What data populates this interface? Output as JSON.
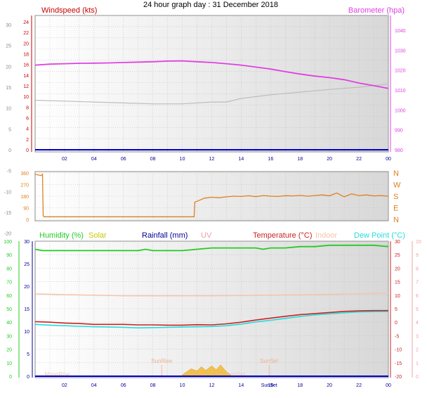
{
  "title": "24 hour graph day : 31 December 2018",
  "colors": {
    "windspeed": "#cc0000",
    "barometer": "#e040e0",
    "wind_line": "#bdbdbd",
    "wind_dir": "#e08020",
    "humidity": "#22cc22",
    "solar": "#c8c800",
    "rainfall": "#000099",
    "uv": "#f0a0a0",
    "temperature": "#cc2222",
    "indoor": "#f5c4a8",
    "dewpoint": "#22dddd",
    "zero_line": "#0000cc",
    "solar_fill": "#f0c050"
  },
  "chart_data": [
    {
      "type": "line",
      "name": "wind-barometer",
      "left_label": "Windspeed (kts)",
      "right_label": "Barometer (hpa)",
      "x_ticks": [
        "02",
        "04",
        "06",
        "08",
        "10",
        "12",
        "14",
        "16",
        "18",
        "20",
        "22",
        "00"
      ],
      "outer_left_ticks": [
        "-20",
        "-15",
        "-10",
        "-5",
        "0",
        "5",
        "10",
        "15",
        "20",
        "25",
        "30"
      ],
      "left_ticks": [
        "0",
        "2",
        "4",
        "6",
        "8",
        "10",
        "12",
        "14",
        "16",
        "18",
        "20",
        "22",
        "24"
      ],
      "right_ticks": [
        "980",
        "990",
        "1000",
        "1010",
        "1020",
        "1030",
        "1040"
      ],
      "left_range": [
        0,
        25
      ],
      "outer_left_range": [
        -20,
        30
      ],
      "right_range": [
        980,
        1040
      ],
      "series": [
        {
          "name": "Barometer",
          "x": [
            0,
            1,
            2,
            3,
            4,
            5,
            6,
            7,
            8,
            9,
            10,
            11,
            12,
            13,
            14,
            15,
            16,
            17,
            18,
            19,
            20,
            21,
            22,
            23,
            24
          ],
          "values": [
            1022.5,
            1023,
            1023.2,
            1023.4,
            1023.5,
            1023.6,
            1023.8,
            1024,
            1024.2,
            1024.5,
            1024.6,
            1024.2,
            1023.8,
            1023.2,
            1022.5,
            1021.5,
            1020.5,
            1019.2,
            1018,
            1017,
            1016.2,
            1015.2,
            1013.5,
            1012.2,
            1010.8
          ]
        },
        {
          "name": "Windspeed",
          "x": [
            0,
            2,
            4,
            6,
            8,
            10,
            12,
            13,
            14,
            16,
            18,
            20,
            22,
            24
          ],
          "values": [
            11,
            10.8,
            10.6,
            10.4,
            10.2,
            10.2,
            10.6,
            10.6,
            11.4,
            12.2,
            12.8,
            13.4,
            13.9,
            14.6
          ]
        }
      ]
    },
    {
      "type": "line",
      "name": "wind-direction",
      "left_ticks": [
        "0",
        "90",
        "180",
        "270",
        "360"
      ],
      "compass": [
        "N",
        "E",
        "S",
        "W",
        "N"
      ],
      "y_range": [
        0,
        360
      ],
      "series": [
        {
          "name": "Wind direction",
          "x": [
            0,
            0.2,
            0.4,
            0.5,
            0.55,
            0.6,
            1,
            3,
            5,
            7,
            9,
            10.8,
            10.85,
            11,
            11.5,
            12,
            12.5,
            13,
            13.5,
            14,
            14.5,
            15,
            15.5,
            16,
            16.5,
            17,
            17.5,
            18,
            18.5,
            19,
            19.5,
            20,
            20.5,
            21,
            21.5,
            22,
            22.5,
            23,
            23.5,
            24
          ],
          "values": [
            350,
            345,
            340,
            350,
            30,
            20,
            20,
            20,
            20,
            20,
            20,
            20,
            135,
            140,
            165,
            172,
            168,
            175,
            180,
            178,
            183,
            176,
            185,
            180,
            178,
            184,
            182,
            186,
            180,
            185,
            190,
            183,
            205,
            175,
            198,
            185,
            190,
            182,
            185,
            180
          ]
        }
      ]
    },
    {
      "type": "line",
      "name": "temperature-humidity",
      "legend": [
        "Humidity (%)",
        "Solar",
        "Rainfall (mm)",
        "UV",
        "Temperature (°C)",
        "Indoor",
        "Dew Point (°C)"
      ],
      "x_ticks": [
        "02",
        "04",
        "06",
        "08",
        "10",
        "12",
        "14",
        "SunSet",
        "16",
        "18",
        "20",
        "22",
        "00"
      ],
      "humidity_ticks": [
        "0",
        "10",
        "20",
        "30",
        "40",
        "50",
        "60",
        "70",
        "80",
        "90",
        "100"
      ],
      "rain_ticks": [
        "0",
        "5",
        "10",
        "15",
        "20",
        "25",
        "30"
      ],
      "temp_ticks": [
        "-20",
        "-15",
        "-10",
        "-5",
        "0",
        "5",
        "10",
        "15",
        "20",
        "25",
        "30"
      ],
      "uv_ticks": [
        "0",
        "1",
        "2",
        "3",
        "4",
        "5",
        "6",
        "7",
        "8",
        "9",
        "10"
      ],
      "humidity_range": [
        0,
        100
      ],
      "temp_range": [
        -20,
        30
      ],
      "annotations": [
        "SunRise",
        "SunSet",
        "MoonRise",
        "MoonSet"
      ],
      "series": [
        {
          "name": "Humidity",
          "x": [
            0,
            0.5,
            1,
            2,
            3,
            4,
            5,
            6,
            7,
            7.5,
            8,
            9,
            10,
            11,
            12,
            13,
            14,
            15,
            15.5,
            16,
            17,
            18,
            19,
            20,
            21,
            22,
            23,
            24
          ],
          "values": [
            94,
            93,
            93,
            93,
            93,
            93,
            93,
            93,
            93,
            94,
            93,
            93,
            93,
            94,
            95,
            95,
            95,
            95,
            94,
            95,
            95,
            96,
            96,
            97,
            97,
            97,
            97,
            96
          ]
        },
        {
          "name": "Temperature",
          "x": [
            0,
            1,
            2,
            3,
            4,
            5,
            6,
            7,
            8,
            9,
            10,
            11,
            12,
            13,
            14,
            15,
            16,
            17,
            18,
            19,
            20,
            21,
            22,
            23,
            24
          ],
          "values": [
            0.2,
            0,
            -0.3,
            -0.5,
            -0.8,
            -0.8,
            -0.8,
            -1,
            -1,
            -1.1,
            -1.1,
            -0.9,
            -1,
            -0.6,
            0,
            0.8,
            1.5,
            2.2,
            2.8,
            3.2,
            3.6,
            4,
            4.2,
            4.3,
            4.3
          ]
        },
        {
          "name": "Dew Point",
          "x": [
            0,
            1,
            2,
            3,
            4,
            5,
            6,
            7,
            8,
            9,
            10,
            11,
            12,
            13,
            14,
            15,
            16,
            17,
            18,
            19,
            20,
            21,
            22,
            23,
            24
          ],
          "values": [
            -0.8,
            -1.1,
            -1.3,
            -1.5,
            -1.7,
            -1.8,
            -1.9,
            -2.1,
            -2,
            -1.9,
            -1.8,
            -1.7,
            -1.6,
            -1.3,
            -0.7,
            0.1,
            0.7,
            1.4,
            2.1,
            2.7,
            3.1,
            3.5,
            3.8,
            3.9,
            4
          ]
        },
        {
          "name": "Indoor",
          "x": [
            0,
            2,
            4,
            6,
            8,
            10,
            12,
            14,
            16,
            18,
            20,
            22,
            24
          ],
          "values": [
            10.5,
            10.2,
            10,
            9.8,
            9.8,
            9.8,
            9.8,
            9.9,
            10,
            10.1,
            10.3,
            10.5,
            10.8
          ]
        },
        {
          "name": "Solar",
          "x": [
            10,
            10.3,
            10.6,
            11,
            11.3,
            11.6,
            12,
            12.3,
            12.6,
            13,
            13.3
          ],
          "values": [
            0.5,
            1.5,
            2.5,
            1.8,
            3.2,
            2,
            3.5,
            2.2,
            3.8,
            1.5,
            0.3
          ]
        }
      ]
    }
  ]
}
